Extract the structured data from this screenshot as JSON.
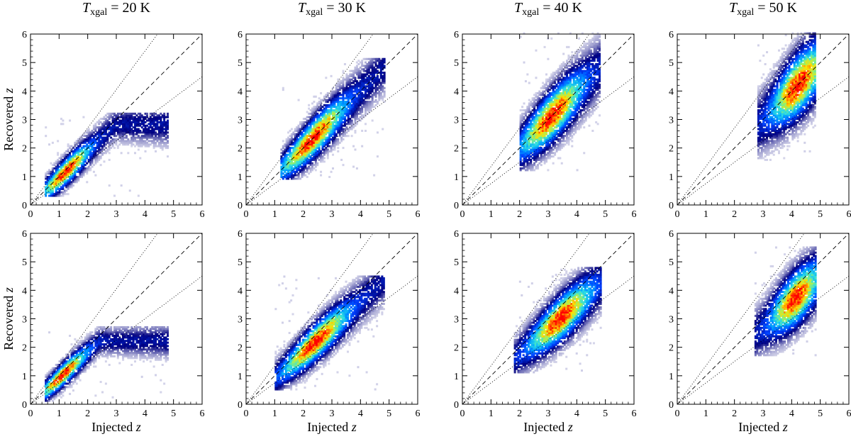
{
  "figure": {
    "columns": [
      {
        "title_var": "T",
        "title_sub": "xgal",
        "title_rest": " = 20 K"
      },
      {
        "title_var": "T",
        "title_sub": "xgal",
        "title_rest": " = 30 K"
      },
      {
        "title_var": "T",
        "title_sub": "xgal",
        "title_rest": " = 40 K"
      },
      {
        "title_var": "T",
        "title_sub": "xgal",
        "title_rest": " = 50 K"
      }
    ],
    "xlabel": {
      "text": "Injected ",
      "var": "z"
    },
    "ylabel": {
      "text": "Recovered ",
      "var": "z"
    },
    "ticks": [
      "0",
      "1",
      "2",
      "3",
      "4",
      "5",
      "6"
    ]
  },
  "chart_data": {
    "type": "heatmap",
    "subtype": "2D density histogram grid (2 rows x 4 columns)",
    "xlim": [
      0,
      6
    ],
    "ylim": [
      0,
      6
    ],
    "reference_lines": [
      {
        "name": "one-to-one",
        "style": "dashed",
        "slope": 1.0
      },
      {
        "name": "upper-bound",
        "style": "dotted",
        "slope": 1.35
      },
      {
        "name": "lower-bound",
        "style": "dotted",
        "slope": 0.75
      }
    ],
    "colormap": [
      "#ffffff",
      "#000080",
      "#0040ff",
      "#00a0ff",
      "#30e0e0",
      "#a0f060",
      "#ffe000",
      "#ff7000",
      "#ff0000",
      "#a00000"
    ],
    "panels": [
      {
        "row": 0,
        "col": 0,
        "xmin": 0.5,
        "xmax": 4.8,
        "ymin": 0.3,
        "ymax": 3.2,
        "mu_x": 1.2,
        "sd_x": 0.55,
        "slope": 0.95,
        "sat": 2.8,
        "spread": 0.25,
        "spread_grow": 0.04
      },
      {
        "row": 0,
        "col": 1,
        "xmin": 1.2,
        "xmax": 4.8,
        "ymin": 0.9,
        "ymax": 5.1,
        "mu_x": 2.3,
        "sd_x": 0.75,
        "slope": 1.0,
        "sat": 6.0,
        "spread": 0.32,
        "spread_grow": 0.05
      },
      {
        "row": 0,
        "col": 2,
        "xmin": 2.0,
        "xmax": 4.8,
        "ymin": 1.2,
        "ymax": 6.0,
        "mu_x": 3.1,
        "sd_x": 0.7,
        "slope": 1.0,
        "sat": 6.0,
        "spread": 0.42,
        "spread_grow": 0.05
      },
      {
        "row": 0,
        "col": 3,
        "xmin": 2.8,
        "xmax": 4.8,
        "ymin": 1.5,
        "ymax": 6.0,
        "mu_x": 4.2,
        "sd_x": 0.6,
        "slope": 1.0,
        "sat": 6.0,
        "spread": 0.5,
        "spread_grow": 0.05
      },
      {
        "row": 1,
        "col": 0,
        "xmin": 0.5,
        "xmax": 4.8,
        "ymin": 0.1,
        "ymax": 2.7,
        "mu_x": 1.1,
        "sd_x": 0.55,
        "slope": 0.92,
        "sat": 2.2,
        "spread": 0.22,
        "spread_grow": 0.03
      },
      {
        "row": 1,
        "col": 1,
        "xmin": 1.0,
        "xmax": 4.8,
        "ymin": 0.5,
        "ymax": 4.5,
        "mu_x": 2.4,
        "sd_x": 0.75,
        "slope": 0.9,
        "sat": 4.6,
        "spread": 0.32,
        "spread_grow": 0.04
      },
      {
        "row": 1,
        "col": 2,
        "xmin": 1.8,
        "xmax": 4.8,
        "ymin": 1.1,
        "ymax": 4.8,
        "mu_x": 3.4,
        "sd_x": 0.7,
        "slope": 0.88,
        "sat": 4.8,
        "spread": 0.38,
        "spread_grow": 0.04
      },
      {
        "row": 1,
        "col": 3,
        "xmin": 2.7,
        "xmax": 4.8,
        "ymin": 1.7,
        "ymax": 5.5,
        "mu_x": 4.1,
        "sd_x": 0.55,
        "slope": 0.9,
        "sat": 5.0,
        "spread": 0.45,
        "spread_grow": 0.04
      }
    ]
  }
}
